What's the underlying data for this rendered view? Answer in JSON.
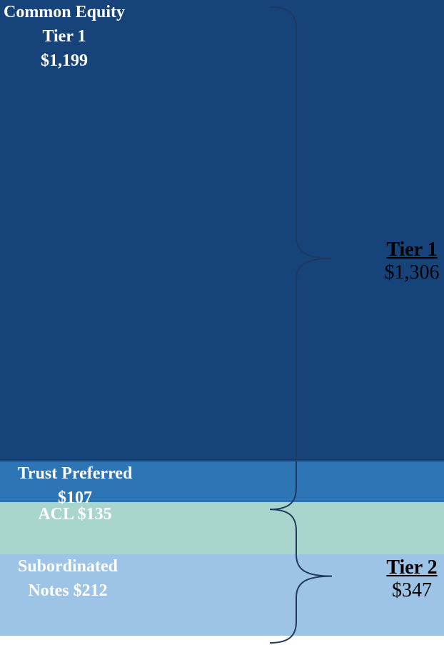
{
  "chart_data": {
    "type": "stacked-bar",
    "categories": [
      "Common Equity Tier 1",
      "Trust Preferred",
      "ACL",
      "Subordinated Notes"
    ],
    "values": [
      1199,
      107,
      135,
      212
    ],
    "value_labels": [
      "$1,199",
      "$107",
      "$135",
      "$212"
    ],
    "colors": [
      "#16437a",
      "#2e75b6",
      "#a8d5cc",
      "#9dc3e6"
    ],
    "groups": [
      {
        "name": "Tier 1",
        "value": 1306,
        "label": "$1,306"
      },
      {
        "name": "Tier 2",
        "value": 347,
        "label": "$347"
      }
    ]
  }
}
